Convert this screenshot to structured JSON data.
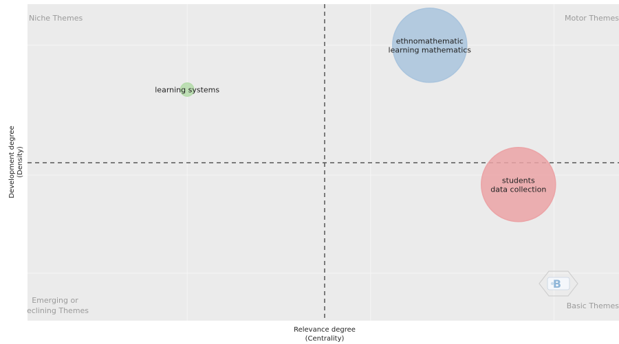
{
  "chart_data": {
    "type": "scatter",
    "xlabel": [
      "Relevance degree",
      "(Centrality)"
    ],
    "ylabel": [
      "Development degree",
      "(Density)"
    ],
    "grid": true,
    "quadrants": {
      "top_left": "Niche Themes",
      "top_right": "Motor Themes",
      "bottom_left": [
        "Emerging or",
        "eclining Themes"
      ],
      "bottom_right": "Basic Themes"
    },
    "points": [
      {
        "label": [
          "ethnomathematic",
          "learning mathematics"
        ],
        "x": 0.68,
        "y": 0.87,
        "size": 1.0,
        "color": "#a9c4dd"
      },
      {
        "label": [
          "learning systems"
        ],
        "x": 0.27,
        "y": 0.73,
        "size": 0.18,
        "color": "#b5dcaa"
      },
      {
        "label": [
          "students",
          "data collection"
        ],
        "x": 0.83,
        "y": 0.43,
        "size": 1.0,
        "color": "#eba3a6"
      }
    ],
    "x_divider": 0.5,
    "y_divider": 0.5
  },
  "colors": {
    "panel": "#ebebeb",
    "grid": "#f6f6f6",
    "divider": "#555555"
  },
  "icons": [
    "bibliometrix-logo-icon"
  ]
}
